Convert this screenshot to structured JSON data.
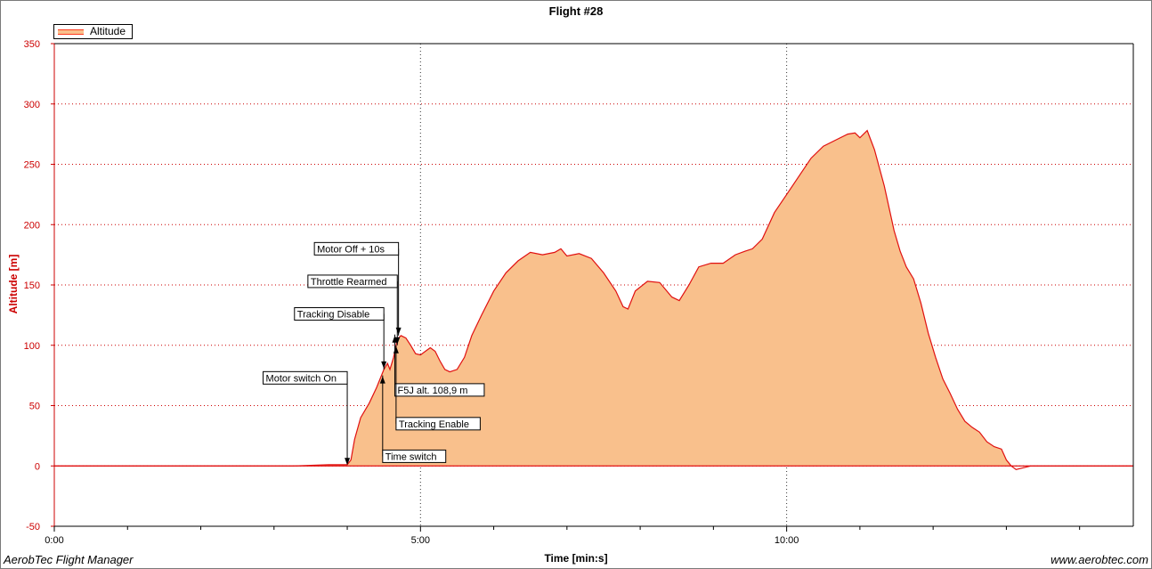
{
  "footer": {
    "app_name": "AerobTec Flight Manager",
    "website": "www.aerobtec.com"
  },
  "colors": {
    "fill": "#f9c08c",
    "line": "#e01010",
    "axis_text_y": "#cc0000"
  },
  "chart_data": {
    "type": "area",
    "title": "Flight #28",
    "xlabel": "Time [min:s]",
    "ylabel": "Altitude [m]",
    "legend": {
      "position": "top-left",
      "entries": [
        "Altitude"
      ]
    },
    "grid": true,
    "x_unit": "seconds",
    "xlim": [
      0,
      884
    ],
    "ylim": [
      -50,
      350
    ],
    "x_ticks": [
      {
        "value": 0,
        "label": "0:00"
      },
      {
        "value": 300,
        "label": "5:00"
      },
      {
        "value": 600,
        "label": "10:00"
      }
    ],
    "y_ticks": [
      -50,
      0,
      50,
      100,
      150,
      200,
      250,
      300,
      350
    ],
    "series": [
      {
        "name": "Altitude",
        "points": [
          [
            0,
            0
          ],
          [
            150,
            0
          ],
          [
            195,
            0
          ],
          [
            225,
            1
          ],
          [
            240,
            1
          ],
          [
            243,
            5
          ],
          [
            246,
            22
          ],
          [
            251,
            40
          ],
          [
            258,
            52
          ],
          [
            264,
            65
          ],
          [
            270,
            80
          ],
          [
            273,
            85
          ],
          [
            275,
            80
          ],
          [
            278,
            90
          ],
          [
            281,
            105
          ],
          [
            284,
            108
          ],
          [
            288,
            106
          ],
          [
            292,
            100
          ],
          [
            296,
            93
          ],
          [
            300,
            92
          ],
          [
            304,
            95
          ],
          [
            308,
            98
          ],
          [
            312,
            95
          ],
          [
            316,
            87
          ],
          [
            320,
            80
          ],
          [
            324,
            78
          ],
          [
            330,
            80
          ],
          [
            336,
            90
          ],
          [
            342,
            108
          ],
          [
            350,
            125
          ],
          [
            360,
            145
          ],
          [
            370,
            160
          ],
          [
            380,
            170
          ],
          [
            390,
            177
          ],
          [
            400,
            175
          ],
          [
            410,
            177
          ],
          [
            415,
            180
          ],
          [
            420,
            174
          ],
          [
            430,
            176
          ],
          [
            440,
            172
          ],
          [
            450,
            160
          ],
          [
            460,
            145
          ],
          [
            466,
            132
          ],
          [
            470,
            130
          ],
          [
            476,
            145
          ],
          [
            486,
            153
          ],
          [
            496,
            152
          ],
          [
            506,
            140
          ],
          [
            512,
            137
          ],
          [
            520,
            150
          ],
          [
            528,
            165
          ],
          [
            538,
            168
          ],
          [
            548,
            168
          ],
          [
            558,
            175
          ],
          [
            566,
            178
          ],
          [
            572,
            180
          ],
          [
            580,
            188
          ],
          [
            590,
            210
          ],
          [
            600,
            225
          ],
          [
            610,
            240
          ],
          [
            620,
            255
          ],
          [
            630,
            265
          ],
          [
            640,
            270
          ],
          [
            650,
            275
          ],
          [
            656,
            276
          ],
          [
            660,
            272
          ],
          [
            666,
            278
          ],
          [
            672,
            262
          ],
          [
            680,
            232
          ],
          [
            688,
            195
          ],
          [
            693,
            178
          ],
          [
            698,
            165
          ],
          [
            704,
            155
          ],
          [
            710,
            135
          ],
          [
            716,
            110
          ],
          [
            722,
            90
          ],
          [
            728,
            72
          ],
          [
            734,
            60
          ],
          [
            740,
            47
          ],
          [
            746,
            37
          ],
          [
            752,
            32
          ],
          [
            758,
            28
          ],
          [
            764,
            20
          ],
          [
            770,
            16
          ],
          [
            776,
            14
          ],
          [
            780,
            5
          ],
          [
            784,
            0
          ],
          [
            788,
            -3
          ],
          [
            800,
            0
          ],
          [
            884,
            0
          ]
        ]
      }
    ],
    "annotations": [
      {
        "label": "Motor switch On",
        "x": 240,
        "y": 0,
        "side": "left",
        "label_y": 73
      },
      {
        "label": "Tracking Disable",
        "x": 270,
        "y": 80,
        "side": "left",
        "label_y": 126
      },
      {
        "label": "Throttle Rearmed",
        "x": 281,
        "y": 100,
        "side": "left",
        "label_y": 153
      },
      {
        "label": "Motor Off + 10s",
        "x": 282,
        "y": 108,
        "side": "left",
        "label_y": 180
      },
      {
        "label": "F5J alt. 108,9 m",
        "x": 279,
        "y": 108.9,
        "side": "right",
        "label_y": 63
      },
      {
        "label": "Tracking Enable",
        "x": 280,
        "y": 100,
        "side": "right",
        "label_y": 35
      },
      {
        "label": "Time switch",
        "x": 269,
        "y": 75,
        "side": "right",
        "label_y": 8
      }
    ]
  }
}
